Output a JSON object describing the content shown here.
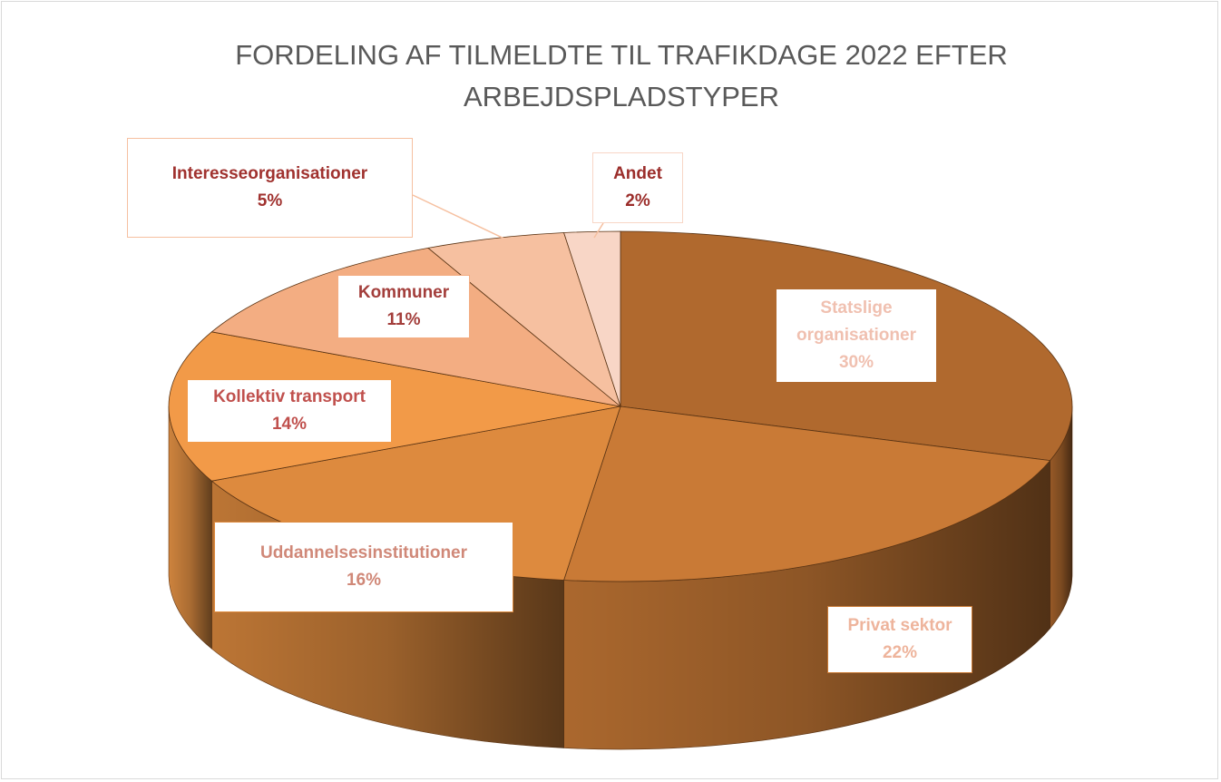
{
  "chart_data": {
    "type": "pie3d",
    "title": "FORDELING AF TILMELDTE TIL TRAFIKDAGE 2022 EFTER ARBEJDSPLADSTYPER",
    "categories": [
      "Statslige organisationer",
      "Privat sektor",
      "Uddannelsesinstitutioner",
      "Kollektiv transport",
      "Kommuner",
      "Interesseorganisationer",
      "Andet"
    ],
    "values": [
      30,
      22,
      16,
      14,
      11,
      5,
      2
    ],
    "value_labels": [
      "30%",
      "22%",
      "16%",
      "14%",
      "11%",
      "5%",
      "2%"
    ],
    "colors": [
      "#b0692e",
      "#c97a36",
      "#dd8a3e",
      "#f29a48",
      "#f3ad82",
      "#f6c0a0",
      "#f8d6c6"
    ],
    "label_colors": [
      "#f0c0b0",
      "#eeb49c",
      "#d08878",
      "#c0504d",
      "#a33e3b",
      "#a0322f",
      "#9b2d2a"
    ]
  }
}
